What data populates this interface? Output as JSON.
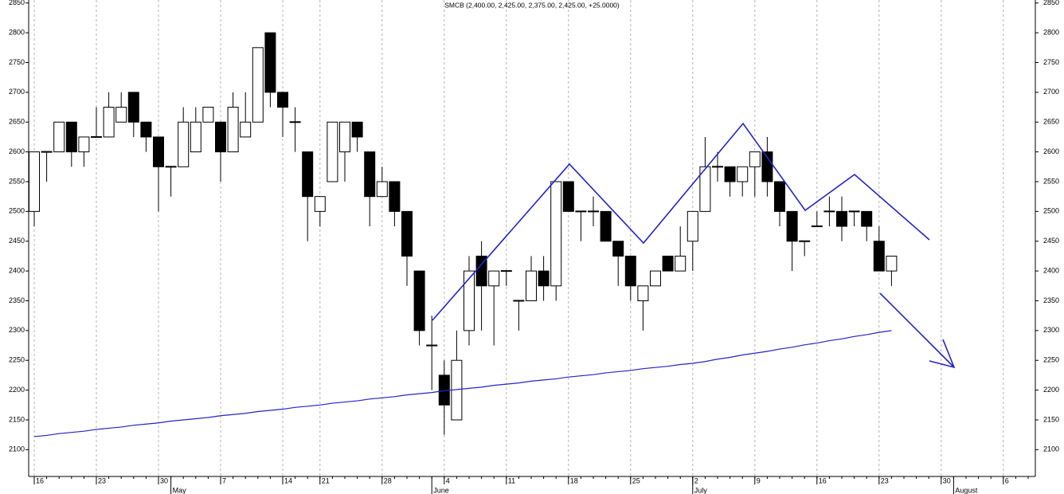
{
  "chart_data": {
    "type": "candlestick",
    "title": "SMCB (2,400.00, 2,425.00, 2,375.00, 2,425.00, +25.0000)",
    "categories": [
      "16",
      null,
      null,
      null,
      null,
      "23",
      null,
      null,
      null,
      null,
      "30",
      null,
      null,
      null,
      null,
      "7",
      null,
      null,
      null,
      null,
      "14",
      null,
      null,
      "21",
      null,
      null,
      null,
      null,
      "28",
      null,
      null,
      null,
      null,
      "4",
      null,
      null,
      null,
      null,
      "11",
      null,
      null,
      null,
      null,
      "18",
      null,
      null,
      null,
      null,
      "25",
      null,
      null,
      null,
      null,
      "2",
      null,
      null,
      null,
      null,
      "9",
      null,
      null,
      null,
      null,
      "16",
      null,
      null,
      null,
      null,
      "23",
      null,
      null,
      null,
      null,
      "30",
      null,
      null,
      null,
      null,
      "6",
      null,
      null
    ],
    "month_labels": [
      null,
      null,
      null,
      null,
      null,
      null,
      null,
      null,
      null,
      null,
      null,
      "May",
      null,
      null,
      null,
      null,
      null,
      null,
      null,
      null,
      null,
      null,
      null,
      null,
      null,
      null,
      null,
      null,
      null,
      null,
      null,
      null,
      "June",
      null,
      null,
      null,
      null,
      null,
      null,
      null,
      null,
      null,
      null,
      null,
      null,
      null,
      null,
      null,
      null,
      null,
      null,
      null,
      null,
      "July",
      null,
      null,
      null,
      null,
      null,
      null,
      null,
      null,
      null,
      null,
      null,
      null,
      null,
      null,
      null,
      null,
      null,
      null,
      null,
      null,
      "August",
      null,
      null,
      null,
      null,
      null
    ],
    "candles": {
      "up_color": "#ffffff",
      "down_color": "#000000",
      "open": [
        2500,
        2600,
        2600,
        2650,
        2600,
        2625,
        2625,
        2650,
        2700,
        2650,
        2625,
        2575,
        2575,
        2600,
        2650,
        2650,
        2600,
        2625,
        2650,
        2800,
        2700,
        2650,
        2600,
        2500,
        2550,
        2600,
        2650,
        2600,
        2525,
        2550,
        2500,
        2400,
        2275,
        2225,
        2150,
        2300,
        2425,
        2375,
        2400,
        2350,
        2350,
        2400,
        2375,
        2550,
        2500,
        2500,
        2500,
        2450,
        2425,
        2350,
        2375,
        2425,
        2400,
        2450,
        2500,
        2575,
        2575,
        2550,
        2575,
        2600,
        2550,
        2500,
        2450,
        2475,
        2500,
        2500,
        2500,
        2500,
        2450,
        2400,
        null,
        null,
        null,
        null,
        null,
        null,
        null,
        null,
        null,
        null,
        null
      ],
      "high": [
        2600,
        2600,
        2650,
        2650,
        2625,
        2675,
        2700,
        2700,
        2700,
        2650,
        2625,
        2575,
        2675,
        2675,
        2675,
        2650,
        2700,
        2700,
        2775,
        2800,
        2700,
        2675,
        2600,
        2525,
        2650,
        2650,
        2650,
        2600,
        2575,
        2550,
        2500,
        2400,
        2325,
        2250,
        2300,
        2425,
        2450,
        2400,
        2400,
        2350,
        2425,
        2425,
        2550,
        2550,
        2500,
        2525,
        2500,
        2450,
        2425,
        2375,
        2400,
        2425,
        2475,
        2500,
        2625,
        2600,
        2575,
        2575,
        2600,
        2625,
        2550,
        2500,
        2450,
        2500,
        2525,
        2525,
        2500,
        2500,
        2475,
        2425,
        null,
        null,
        null,
        null,
        null,
        null,
        null,
        null,
        null,
        null,
        null
      ],
      "low": [
        2475,
        2550,
        2600,
        2575,
        2575,
        2625,
        2625,
        2650,
        2625,
        2600,
        2500,
        2525,
        2575,
        2600,
        2650,
        2550,
        2600,
        2625,
        2650,
        2675,
        2625,
        2600,
        2450,
        2475,
        2550,
        2550,
        2600,
        2475,
        2525,
        2475,
        2375,
        2275,
        2200,
        2125,
        2150,
        2275,
        2300,
        2275,
        2375,
        2300,
        2350,
        2350,
        2350,
        2500,
        2450,
        2475,
        2450,
        2375,
        2350,
        2300,
        2375,
        2400,
        2400,
        2400,
        2500,
        2550,
        2525,
        2525,
        2525,
        2525,
        2475,
        2400,
        2425,
        2475,
        2475,
        2450,
        2475,
        2450,
        2400,
        2375,
        null,
        null,
        null,
        null,
        null,
        null,
        null,
        null,
        null,
        null,
        null
      ],
      "close": [
        2600,
        2600,
        2650,
        2600,
        2625,
        2625,
        2675,
        2675,
        2650,
        2625,
        2575,
        2575,
        2650,
        2650,
        2675,
        2600,
        2675,
        2650,
        2775,
        2700,
        2675,
        2650,
        2525,
        2525,
        2650,
        2650,
        2625,
        2525,
        2550,
        2500,
        2425,
        2300,
        2275,
        2175,
        2250,
        2400,
        2375,
        2400,
        2400,
        2350,
        2400,
        2375,
        2550,
        2500,
        2500,
        2500,
        2450,
        2425,
        2375,
        2375,
        2400,
        2400,
        2425,
        2500,
        2575,
        2575,
        2550,
        2575,
        2600,
        2550,
        2500,
        2450,
        2450,
        2475,
        2500,
        2475,
        2500,
        2475,
        2400,
        2425,
        null,
        null,
        null,
        null,
        null,
        null,
        null,
        null,
        null,
        null,
        null
      ]
    },
    "moving_average": {
      "color": "#2424c8",
      "values": [
        2122,
        2124,
        2127,
        2129,
        2131,
        2134,
        2136,
        2138,
        2141,
        2143,
        2145,
        2148,
        2150,
        2152,
        2154,
        2157,
        2159,
        2161,
        2164,
        2166,
        2168,
        2171,
        2173,
        2175,
        2178,
        2180,
        2182,
        2185,
        2187,
        2189,
        2192,
        2194,
        2196,
        2199,
        2201,
        2203,
        2205,
        2208,
        2210,
        2212,
        2215,
        2217,
        2219,
        2222,
        2224,
        2226,
        2229,
        2231,
        2233,
        2236,
        2238,
        2240,
        2243,
        2245,
        2248,
        2252,
        2255,
        2259,
        2262,
        2265,
        2269,
        2272,
        2276,
        2279,
        2283,
        2286,
        2290,
        2293,
        2297,
        2300,
        null,
        null,
        null,
        null,
        null,
        null,
        null,
        null,
        null,
        null,
        null
      ]
    },
    "ylim": [
      2055,
      2855
    ],
    "yticks": [
      2100,
      2150,
      2200,
      2250,
      2300,
      2350,
      2400,
      2450,
      2500,
      2550,
      2600,
      2650,
      2700,
      2750,
      2800,
      2850
    ],
    "grid": true
  }
}
